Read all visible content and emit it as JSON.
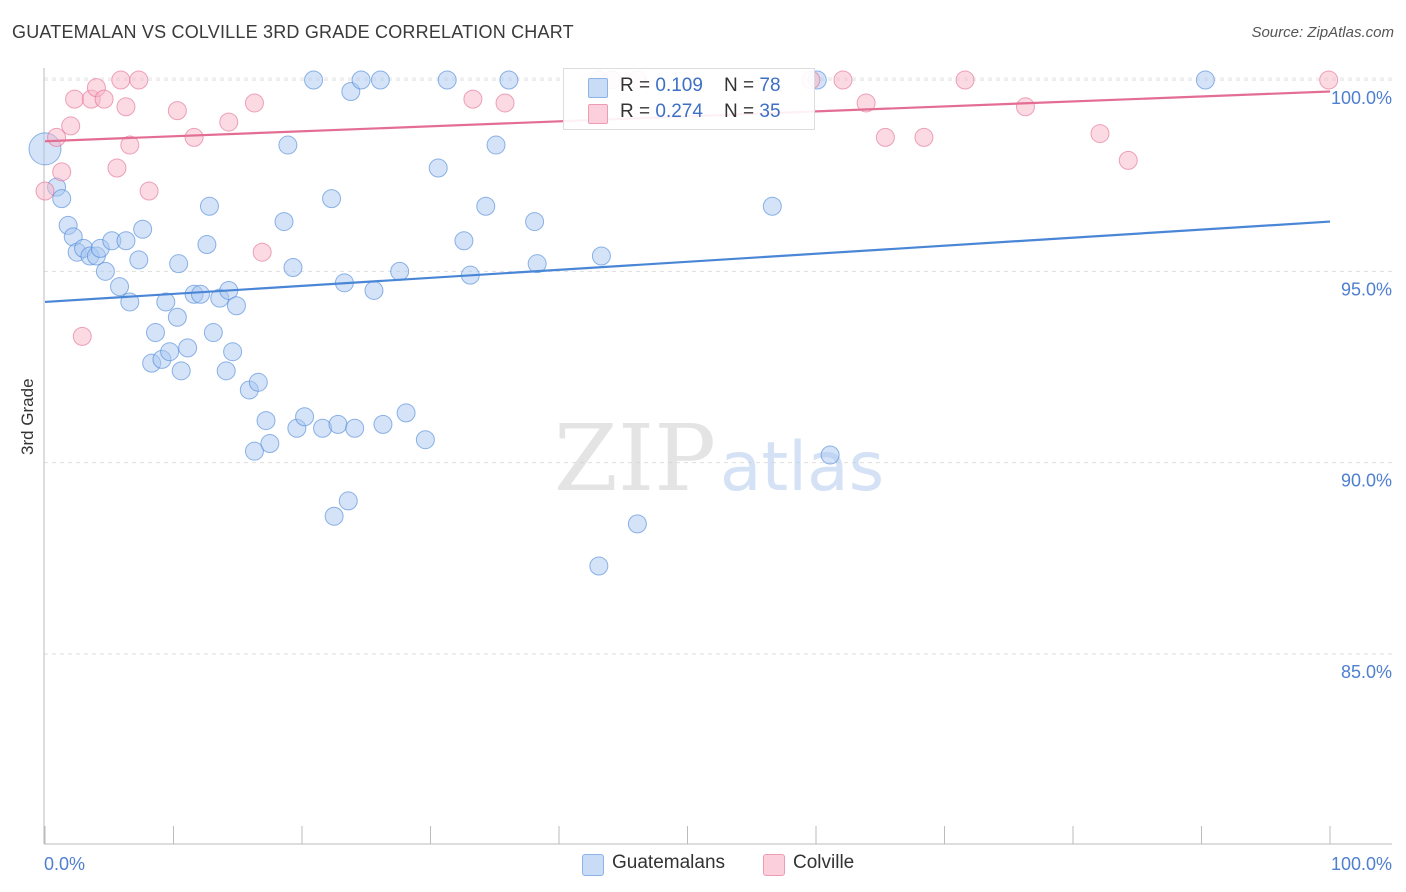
{
  "title": "GUATEMALAN VS COLVILLE 3RD GRADE CORRELATION CHART",
  "source": "Source: ZipAtlas.com",
  "watermark": {
    "zip": "ZIP",
    "atlas": "atlas"
  },
  "legend": {
    "rows": [
      {
        "r_label": "R = ",
        "r_value": "0.109",
        "n_label": "N = ",
        "n_value": "78",
        "color": "#a9c8f2"
      },
      {
        "r_label": "R = ",
        "r_value": "0.274",
        "n_label": "N = ",
        "n_value": "35",
        "color": "#f7b6c8"
      }
    ]
  },
  "bottom_legend": [
    {
      "label": "Guatemalans",
      "color": "#a9c8f2"
    },
    {
      "label": "Colville",
      "color": "#f7b6c8"
    }
  ],
  "chart_data": {
    "type": "scatter",
    "title": "GUATEMALAN VS COLVILLE 3RD GRADE CORRELATION CHART",
    "xlabel": "",
    "ylabel": "3rd Grade",
    "xlim": [
      0,
      100
    ],
    "ylim": [
      80.5,
      100.7
    ],
    "x_tick_labels": [
      "0.0%",
      "100.0%"
    ],
    "y_ticks": [
      100,
      95,
      90,
      85
    ],
    "y_tick_labels": [
      "100.0%",
      "95.0%",
      "90.0%",
      "85.0%"
    ],
    "grid": "horizontal dashed",
    "legend_position": "top-center",
    "series": [
      {
        "name": "Guatemalans",
        "color": "#4a86d6",
        "fill": "#a9c8f2",
        "trend": {
          "x": [
            0,
            100
          ],
          "y": [
            94.2,
            96.3
          ]
        },
        "points": [
          [
            0.0,
            98.2
          ],
          [
            0.9,
            97.2
          ],
          [
            1.3,
            96.9
          ],
          [
            1.8,
            96.2
          ],
          [
            2.2,
            95.9
          ],
          [
            2.5,
            95.5
          ],
          [
            3.0,
            95.6
          ],
          [
            3.5,
            95.4
          ],
          [
            4.0,
            95.4
          ],
          [
            4.3,
            95.6
          ],
          [
            4.7,
            95.0
          ],
          [
            5.2,
            95.8
          ],
          [
            5.8,
            94.6
          ],
          [
            6.3,
            95.8
          ],
          [
            6.6,
            94.2
          ],
          [
            7.3,
            95.3
          ],
          [
            7.6,
            96.1
          ],
          [
            8.3,
            92.6
          ],
          [
            8.6,
            93.4
          ],
          [
            9.1,
            92.7
          ],
          [
            9.4,
            94.2
          ],
          [
            9.7,
            92.9
          ],
          [
            10.3,
            93.8
          ],
          [
            10.4,
            95.2
          ],
          [
            10.6,
            92.4
          ],
          [
            11.1,
            93.0
          ],
          [
            11.6,
            94.4
          ],
          [
            12.1,
            94.4
          ],
          [
            12.6,
            95.7
          ],
          [
            12.8,
            96.7
          ],
          [
            13.1,
            93.4
          ],
          [
            13.6,
            94.3
          ],
          [
            14.1,
            92.4
          ],
          [
            14.3,
            94.5
          ],
          [
            14.6,
            92.9
          ],
          [
            14.9,
            94.1
          ],
          [
            15.9,
            91.9
          ],
          [
            16.3,
            90.3
          ],
          [
            16.6,
            92.1
          ],
          [
            17.2,
            91.1
          ],
          [
            17.5,
            90.5
          ],
          [
            18.6,
            96.3
          ],
          [
            18.9,
            98.3
          ],
          [
            19.3,
            95.1
          ],
          [
            19.6,
            90.9
          ],
          [
            20.2,
            91.2
          ],
          [
            20.9,
            100.0
          ],
          [
            21.6,
            90.9
          ],
          [
            22.3,
            96.9
          ],
          [
            22.5,
            88.6
          ],
          [
            22.8,
            91.0
          ],
          [
            23.3,
            94.7
          ],
          [
            23.6,
            89.0
          ],
          [
            23.8,
            99.7
          ],
          [
            24.1,
            90.9
          ],
          [
            24.6,
            100.0
          ],
          [
            25.6,
            94.5
          ],
          [
            26.1,
            100.0
          ],
          [
            26.3,
            91.0
          ],
          [
            27.6,
            95.0
          ],
          [
            28.1,
            91.3
          ],
          [
            29.6,
            90.6
          ],
          [
            30.6,
            97.7
          ],
          [
            31.3,
            100.0
          ],
          [
            32.6,
            95.8
          ],
          [
            33.1,
            94.9
          ],
          [
            34.3,
            96.7
          ],
          [
            35.1,
            98.3
          ],
          [
            36.1,
            100.0
          ],
          [
            38.1,
            96.3
          ],
          [
            38.3,
            95.2
          ],
          [
            43.1,
            87.3
          ],
          [
            43.3,
            95.4
          ],
          [
            46.1,
            88.4
          ],
          [
            56.6,
            96.7
          ],
          [
            60.1,
            100.0
          ],
          [
            61.1,
            90.2
          ],
          [
            90.3,
            100.0
          ]
        ]
      },
      {
        "name": "Colville",
        "color": "#e36d93",
        "fill": "#f7b6c8",
        "trend": {
          "x": [
            0,
            100
          ],
          "y": [
            98.4,
            99.7
          ]
        },
        "points": [
          [
            0.0,
            97.1
          ],
          [
            0.9,
            98.5
          ],
          [
            1.3,
            97.6
          ],
          [
            2.0,
            98.8
          ],
          [
            2.3,
            99.5
          ],
          [
            2.9,
            93.3
          ],
          [
            3.6,
            99.5
          ],
          [
            4.0,
            99.8
          ],
          [
            4.6,
            99.5
          ],
          [
            5.6,
            97.7
          ],
          [
            5.9,
            100.0
          ],
          [
            6.3,
            99.3
          ],
          [
            6.6,
            98.3
          ],
          [
            7.3,
            100.0
          ],
          [
            8.1,
            97.1
          ],
          [
            10.3,
            99.2
          ],
          [
            11.6,
            98.5
          ],
          [
            14.3,
            98.9
          ],
          [
            16.3,
            99.4
          ],
          [
            16.9,
            95.5
          ],
          [
            33.3,
            99.5
          ],
          [
            35.8,
            99.4
          ],
          [
            43.1,
            100.0
          ],
          [
            44.1,
            100.0
          ],
          [
            46.1,
            100.0
          ],
          [
            59.6,
            100.0
          ],
          [
            62.1,
            100.0
          ],
          [
            63.9,
            99.4
          ],
          [
            65.4,
            98.5
          ],
          [
            68.4,
            98.5
          ],
          [
            71.6,
            100.0
          ],
          [
            76.3,
            99.3
          ],
          [
            82.1,
            98.6
          ],
          [
            84.3,
            97.9
          ],
          [
            99.9,
            100.0
          ]
        ]
      }
    ]
  }
}
